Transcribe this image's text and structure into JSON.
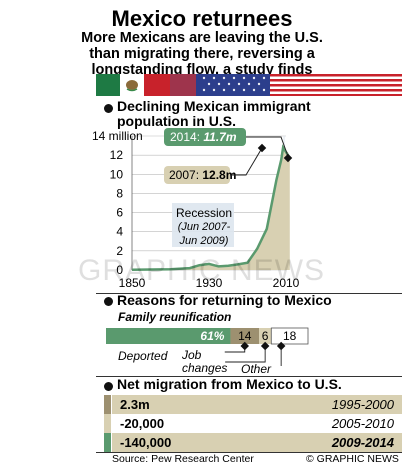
{
  "header": {
    "title": "Mexico returnees",
    "subtitle_lines": [
      "More Mexicans are leaving the U.S.",
      "than migrating there, reversing a",
      "longstanding flow, a study finds"
    ]
  },
  "colors": {
    "green": "#5a9a6e",
    "tan": "#d8d0b2",
    "darktan": "#9d9070",
    "red": "#c8222b",
    "lightblue": "#dde6ee"
  },
  "icons": [
    "mexico-flag-icon",
    "usa-flag-icon"
  ],
  "section1": {
    "title_lines": [
      "Declining Mexican immigrant",
      "population in U.S."
    ]
  },
  "section2": {
    "title": "Reasons for returning to Mexico"
  },
  "section3": {
    "title": "Net migration from Mexico to U.S."
  },
  "source": "Source: Pew Research Center",
  "credit": "© GRAPHIC NEWS",
  "watermark": "GRAPHIC NEWS",
  "chart_data": [
    {
      "type": "area",
      "ylabel": "14 million",
      "y_ticks": [
        "14 million",
        "12",
        "10",
        "8",
        "6",
        "4",
        "2",
        "0"
      ],
      "x_ticks": [
        "1850",
        "1930",
        "2010"
      ],
      "ylim": [
        0,
        14
      ],
      "x": [
        1850,
        1870,
        1890,
        1910,
        1920,
        1930,
        1940,
        1950,
        1960,
        1970,
        1980,
        1990,
        2000,
        2005,
        2007,
        2009,
        2014
      ],
      "values": [
        0.02,
        0.05,
        0.08,
        0.2,
        0.5,
        0.64,
        0.38,
        0.45,
        0.58,
        0.76,
        2.2,
        4.3,
        9.4,
        11.5,
        12.8,
        12.5,
        11.7
      ],
      "annotations": [
        {
          "label": "2014: ",
          "value": "11.7m"
        },
        {
          "label": "2007: ",
          "value": "12.8m"
        }
      ],
      "recession": {
        "label": "Recession",
        "period": "(Jun 2007-Jun 2009)"
      }
    },
    {
      "type": "bar",
      "title": "Family reunification",
      "segments": [
        {
          "label": "Family reunification",
          "value": 61,
          "display": "61%"
        },
        {
          "label": "Deported",
          "value": 14,
          "display": "14"
        },
        {
          "label": "Job changes",
          "value": 6,
          "display": "6"
        },
        {
          "label": "Other",
          "value": 18,
          "display": "18"
        }
      ],
      "callout_labels": {
        "deported": "Deported",
        "job": "Job changes",
        "job_line1": "Job",
        "job_line2": "changes",
        "other": "Other"
      }
    },
    {
      "type": "table",
      "rows": [
        {
          "value": "2.3m",
          "period": "1995-2000"
        },
        {
          "value": "-20,000",
          "period": "2005-2010"
        },
        {
          "value": "-140,000",
          "period": "2009-2014"
        }
      ]
    }
  ]
}
